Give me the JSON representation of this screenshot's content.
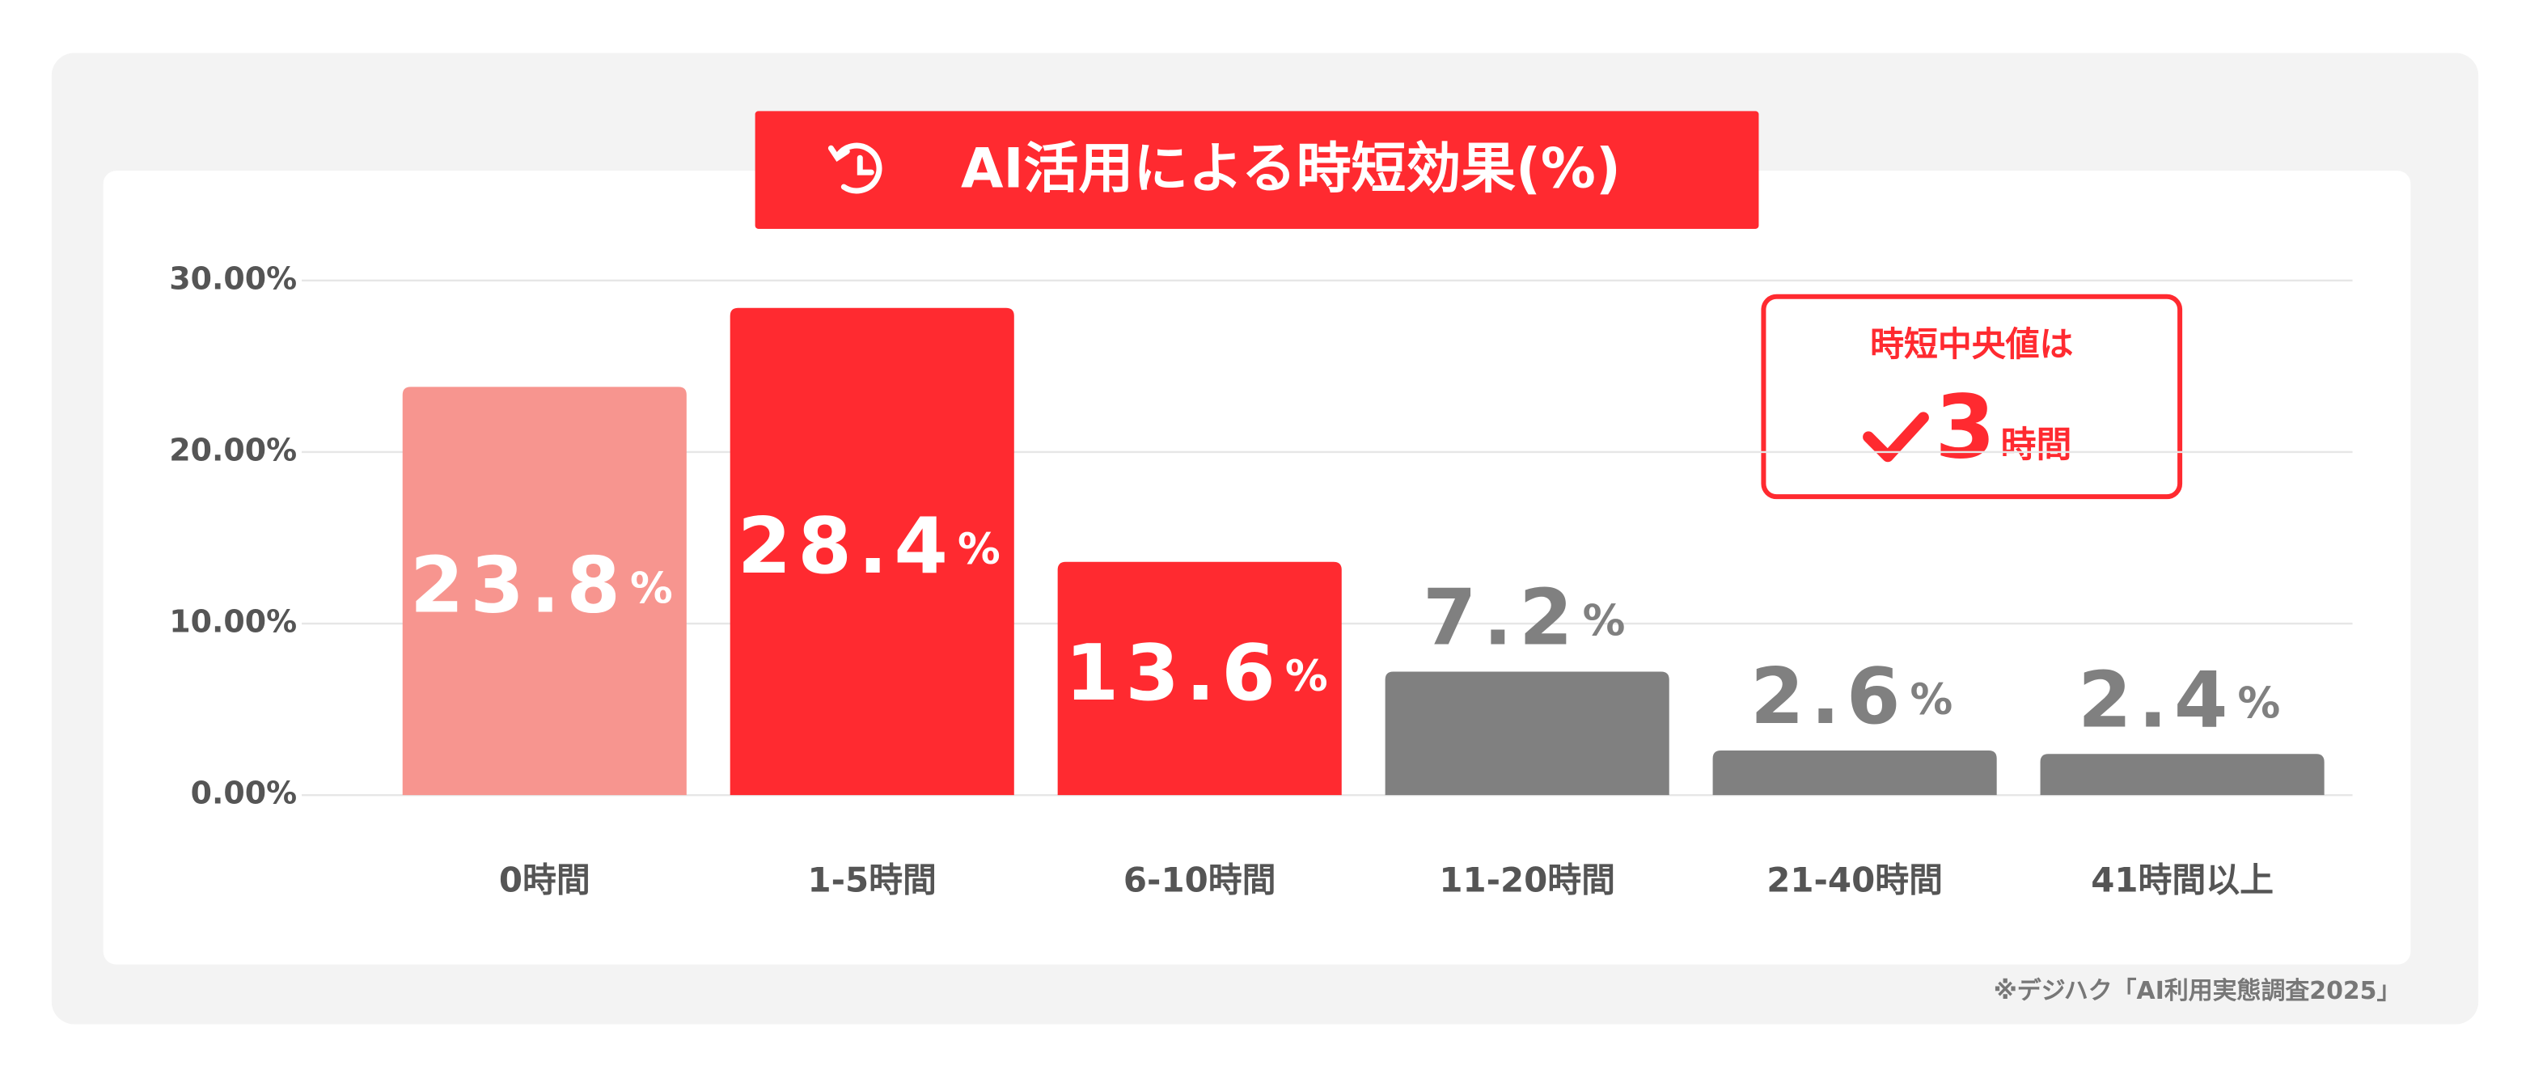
{
  "chart_data": {
    "type": "bar",
    "title": "AI活用による時短効果(%)",
    "categories": [
      "0時間",
      "1-5時間",
      "6-10時間",
      "11-20時間",
      "21-40時間",
      "41時間以上"
    ],
    "values": [
      23.8,
      28.4,
      13.6,
      7.2,
      2.6,
      2.4
    ],
    "value_labels": [
      "23.8%",
      "28.4%",
      "13.6%",
      "7.2%",
      "2.6%",
      "2.4%"
    ],
    "colors": [
      "#f7958f",
      "#ff2a30",
      "#ff2a30",
      "#808080",
      "#808080",
      "#808080"
    ],
    "ylim": [
      0,
      30
    ],
    "yticks": [
      {
        "value": 0,
        "label": "0.00%"
      },
      {
        "value": 10,
        "label": "10.00%"
      },
      {
        "value": 20,
        "label": "20.00%"
      },
      {
        "value": 30,
        "label": "30.00%"
      }
    ],
    "grid": true,
    "annotation": {
      "heading": "時短中央値は",
      "number": "3",
      "unit": "時間"
    },
    "source": "※デジハク「AI利用実態調査2025」"
  }
}
